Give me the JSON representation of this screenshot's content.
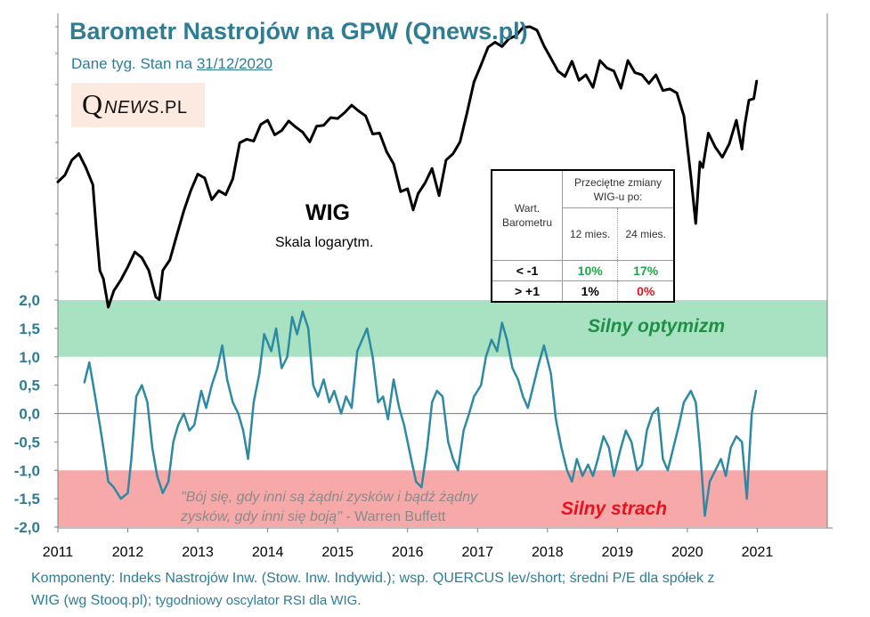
{
  "header": {
    "title": "Barometr Nastrojów na GPW (Qnews.pl)",
    "subtitle_prefix": "Dane tyg. Stan na ",
    "subtitle_date": "31/12/2020"
  },
  "logo": {
    "q": "Q",
    "news": "NEWS",
    "pl": ".PL"
  },
  "wig_label": {
    "title": "WIG",
    "scale": "Skala logarytm."
  },
  "zones": {
    "optimism": "Silny optymizm",
    "fear": "Silny strach"
  },
  "quote": {
    "line1": "\"Bój się, gdy inni są żądni zysków i bądź żądny",
    "line2_italic": "zysków, gdy inni się boją\"",
    "line2_author": " - Warren Buffett"
  },
  "footer": {
    "line1": "Komponenty: Indeks Nastrojów Inw. (Stow. Inw. Indywid.); wsp. QUERCUS lev/short; średni P/E dla spółek z",
    "line2_main": "WIG (wg Stooq.pl); ",
    "line2_small": "tygodniowy oscylator RSI dla WIG."
  },
  "stats_table": {
    "col1_header": "Wart. Barometru",
    "group_header": "Przeciętne zmiany WIG-u po:",
    "col2_header": "12 mies.",
    "col3_header": "24 mies.",
    "rows": [
      {
        "label": "< -1",
        "m12": "10%",
        "m24": "17%"
      },
      {
        "label": "> +1",
        "m12": "1%",
        "m24": "0%"
      }
    ]
  },
  "colors": {
    "title": "#2e7d95",
    "barometer_line": "#2e8aa3",
    "wig_line": "#000000",
    "optimism_band": "#a9e2c3",
    "fear_band": "#f7a9a9",
    "positive": "#1fa64a",
    "negative": "#e8121f"
  },
  "chart_data": {
    "type": "line",
    "x_tick_labels": [
      "2011",
      "2012",
      "2013",
      "2014",
      "2015",
      "2016",
      "2017",
      "2018",
      "2019",
      "2020",
      "2021"
    ],
    "y_tick_labels": [
      "2,0",
      "1,5",
      "1,0",
      "0,5",
      "0,0",
      "-0,5",
      "-1,0",
      "-1,5",
      "-2,0"
    ],
    "ylim": [
      -2.0,
      2.0
    ],
    "xlim": [
      2011.0,
      2022.0
    ],
    "bands": [
      {
        "name": "Silny optymizm",
        "from": 1.0,
        "to": 2.0
      },
      {
        "name": "Silny strach",
        "from": -2.0,
        "to": -1.0
      }
    ],
    "series": [
      {
        "name": "Barometr",
        "axis": "left",
        "x": [
          2011.38,
          2011.45,
          2011.52,
          2011.6,
          2011.65,
          2011.72,
          2011.8,
          2011.9,
          2012.0,
          2012.05,
          2012.12,
          2012.2,
          2012.28,
          2012.35,
          2012.42,
          2012.5,
          2012.58,
          2012.65,
          2012.72,
          2012.8,
          2012.88,
          2012.95,
          2013.05,
          2013.12,
          2013.2,
          2013.28,
          2013.35,
          2013.42,
          2013.5,
          2013.58,
          2013.65,
          2013.72,
          2013.8,
          2013.88,
          2013.95,
          2014.05,
          2014.12,
          2014.2,
          2014.28,
          2014.35,
          2014.42,
          2014.5,
          2014.58,
          2014.65,
          2014.72,
          2014.8,
          2014.88,
          2014.95,
          2015.05,
          2015.12,
          2015.2,
          2015.28,
          2015.35,
          2015.42,
          2015.5,
          2015.58,
          2015.65,
          2015.72,
          2015.8,
          2015.88,
          2015.95,
          2016.05,
          2016.12,
          2016.2,
          2016.28,
          2016.35,
          2016.42,
          2016.5,
          2016.58,
          2016.65,
          2016.72,
          2016.8,
          2016.88,
          2016.95,
          2017.05,
          2017.12,
          2017.2,
          2017.28,
          2017.35,
          2017.42,
          2017.5,
          2017.58,
          2017.65,
          2017.72,
          2017.8,
          2017.88,
          2017.95,
          2018.05,
          2018.12,
          2018.2,
          2018.28,
          2018.35,
          2018.42,
          2018.5,
          2018.58,
          2018.65,
          2018.72,
          2018.8,
          2018.88,
          2018.95,
          2019.05,
          2019.12,
          2019.2,
          2019.28,
          2019.35,
          2019.42,
          2019.5,
          2019.58,
          2019.65,
          2019.72,
          2019.8,
          2019.88,
          2019.95,
          2020.05,
          2020.12,
          2020.18,
          2020.25,
          2020.32,
          2020.4,
          2020.48,
          2020.55,
          2020.62,
          2020.7,
          2020.78,
          2020.85,
          2020.92,
          2020.98
        ],
        "values": [
          0.55,
          0.9,
          0.4,
          -0.2,
          -0.6,
          -1.2,
          -1.3,
          -1.5,
          -1.4,
          -0.8,
          0.3,
          0.5,
          0.2,
          -0.6,
          -1.1,
          -1.4,
          -1.2,
          -0.5,
          -0.2,
          0.0,
          -0.3,
          -0.2,
          0.4,
          0.1,
          0.5,
          0.8,
          1.2,
          0.6,
          0.2,
          0.0,
          -0.3,
          -0.8,
          0.2,
          0.7,
          1.4,
          1.1,
          1.5,
          0.8,
          1.0,
          1.7,
          1.4,
          1.8,
          1.5,
          0.5,
          0.3,
          0.6,
          0.2,
          0.4,
          0.0,
          0.3,
          0.1,
          1.1,
          1.3,
          1.5,
          1.0,
          0.2,
          0.3,
          -0.1,
          0.6,
          0.1,
          -0.2,
          -0.8,
          -1.2,
          -1.3,
          -0.6,
          0.2,
          0.4,
          0.3,
          -0.5,
          -0.8,
          -1.0,
          -0.3,
          0.0,
          0.3,
          0.5,
          1.0,
          1.3,
          1.1,
          1.6,
          1.3,
          0.8,
          0.6,
          0.3,
          0.1,
          0.5,
          0.9,
          1.2,
          0.7,
          -0.1,
          -0.6,
          -1.0,
          -1.2,
          -0.8,
          -1.1,
          -0.9,
          -1.1,
          -0.8,
          -0.4,
          -0.6,
          -1.1,
          -0.6,
          -0.3,
          -0.5,
          -1.0,
          -0.9,
          -0.3,
          0.0,
          0.1,
          -0.8,
          -1.0,
          -0.6,
          -0.2,
          0.2,
          0.4,
          0.2,
          -0.6,
          -1.8,
          -1.2,
          -1.0,
          -0.8,
          -1.1,
          -0.6,
          -0.4,
          -0.5,
          -1.5,
          0.0,
          0.4
        ]
      },
      {
        "name": "WIG",
        "axis": "right",
        "scale": "log",
        "x": [
          2011.0,
          2011.1,
          2011.2,
          2011.3,
          2011.4,
          2011.5,
          2011.55,
          2011.6,
          2011.65,
          2011.72,
          2011.8,
          2011.9,
          2012.0,
          2012.1,
          2012.2,
          2012.3,
          2012.4,
          2012.45,
          2012.5,
          2012.6,
          2012.7,
          2012.8,
          2012.9,
          2013.0,
          2013.1,
          2013.2,
          2013.3,
          2013.4,
          2013.5,
          2013.6,
          2013.7,
          2013.8,
          2013.9,
          2014.0,
          2014.1,
          2014.2,
          2014.3,
          2014.4,
          2014.5,
          2014.6,
          2014.7,
          2014.8,
          2014.9,
          2015.0,
          2015.1,
          2015.2,
          2015.3,
          2015.4,
          2015.5,
          2015.6,
          2015.7,
          2015.8,
          2015.9,
          2016.0,
          2016.08,
          2016.15,
          2016.25,
          2016.35,
          2016.45,
          2016.55,
          2016.65,
          2016.75,
          2016.85,
          2016.95,
          2017.05,
          2017.15,
          2017.25,
          2017.35,
          2017.45,
          2017.55,
          2017.65,
          2017.75,
          2017.85,
          2017.95,
          2018.05,
          2018.15,
          2018.25,
          2018.35,
          2018.45,
          2018.55,
          2018.65,
          2018.75,
          2018.85,
          2018.95,
          2019.05,
          2019.15,
          2019.25,
          2019.35,
          2019.45,
          2019.55,
          2019.65,
          2019.75,
          2019.85,
          2019.95,
          2020.05,
          2020.12,
          2020.18,
          2020.22,
          2020.3,
          2020.4,
          2020.5,
          2020.6,
          2020.7,
          2020.78,
          2020.82,
          2020.88,
          2020.95,
          2020.99
        ],
        "values": [
          47500,
          48200,
          49800,
          50500,
          49000,
          47200,
          42800,
          39200,
          38500,
          36200,
          37500,
          38400,
          39500,
          40800,
          40300,
          39200,
          37000,
          36800,
          39200,
          40100,
          42300,
          44600,
          46600,
          48300,
          47900,
          45700,
          46600,
          46200,
          47800,
          51700,
          52100,
          51900,
          53800,
          54300,
          52600,
          53100,
          54200,
          53500,
          52900,
          51800,
          53600,
          53700,
          54600,
          54500,
          55200,
          56100,
          55400,
          54800,
          52700,
          52800,
          50700,
          49400,
          46500,
          46800,
          44700,
          46300,
          47400,
          48900,
          46100,
          49800,
          50500,
          51800,
          55200,
          59000,
          61200,
          63600,
          64300,
          63700,
          64800,
          65200,
          66400,
          66500,
          66000,
          63800,
          62100,
          60400,
          59700,
          61700,
          59200,
          59900,
          58300,
          61800,
          60800,
          60400,
          58200,
          61800,
          60200,
          59900,
          58800,
          59900,
          57900,
          58100,
          57600,
          54800,
          48100,
          43400,
          49600,
          49000,
          52800,
          51200,
          50100,
          51600,
          54300,
          51000,
          53700,
          56700,
          56900,
          59100
        ]
      }
    ],
    "inset_table_title": "Przeciętne zmiany WIG-u po:"
  }
}
